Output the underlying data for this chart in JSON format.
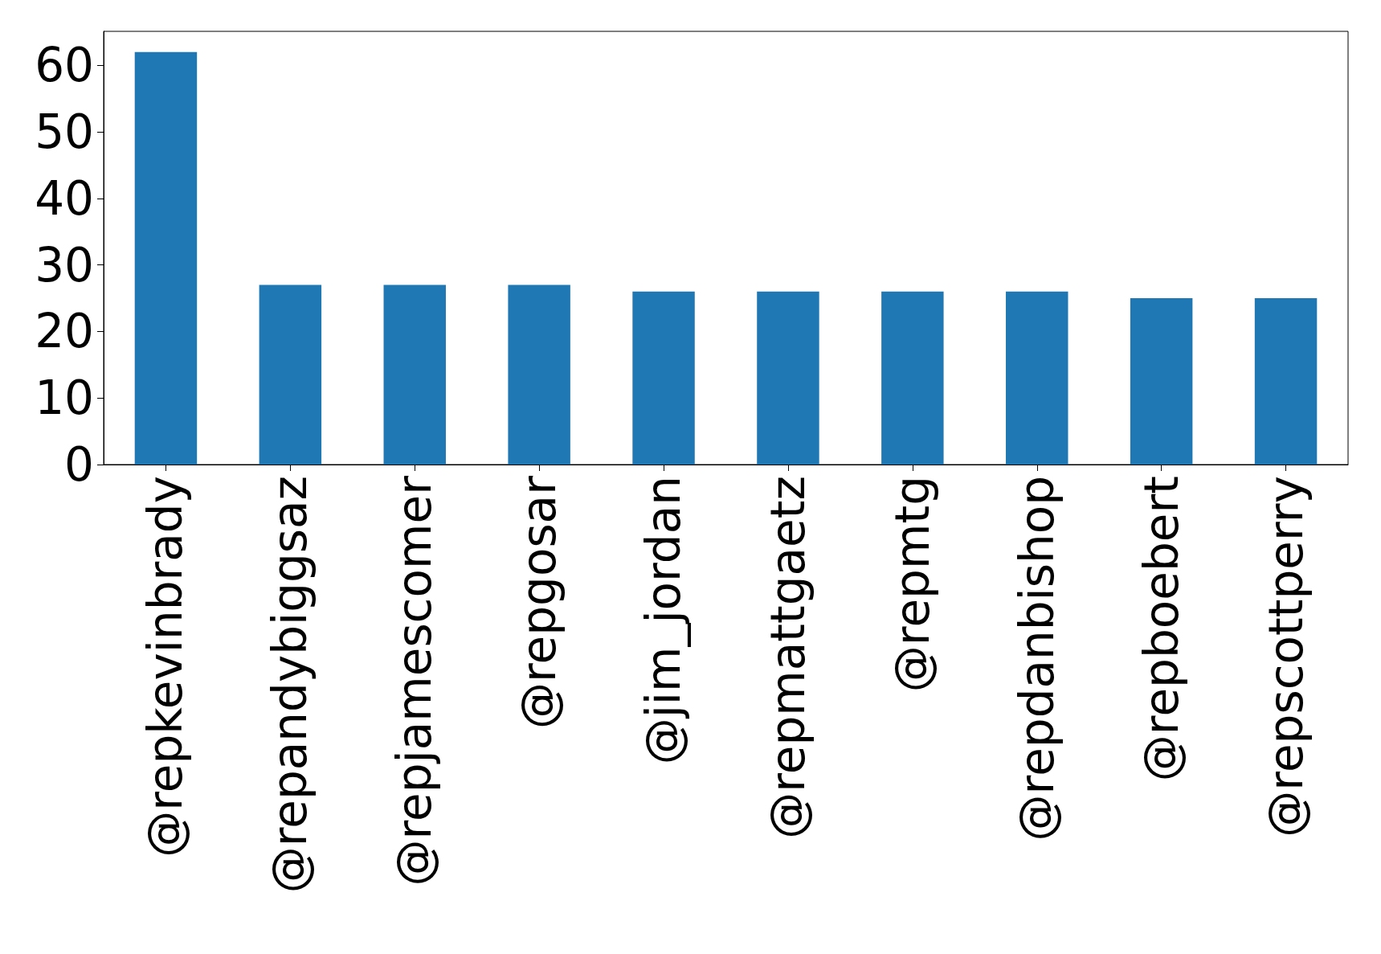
{
  "chart_data": {
    "type": "bar",
    "categories": [
      "@repkevinbrady",
      "@repandybiggsaz",
      "@repjamescomer",
      "@repgosar",
      "@jim_jordan",
      "@repmattgaetz",
      "@repmtg",
      "@repdanbishop",
      "@repboebert",
      "@repscottperry"
    ],
    "values": [
      62,
      27,
      27,
      27,
      26,
      26,
      26,
      26,
      25,
      25
    ],
    "color": "#1f77b4",
    "ylim": [
      0,
      65.1
    ],
    "yticks": [
      0,
      10,
      20,
      30,
      40,
      50,
      60
    ],
    "grid": false
  }
}
